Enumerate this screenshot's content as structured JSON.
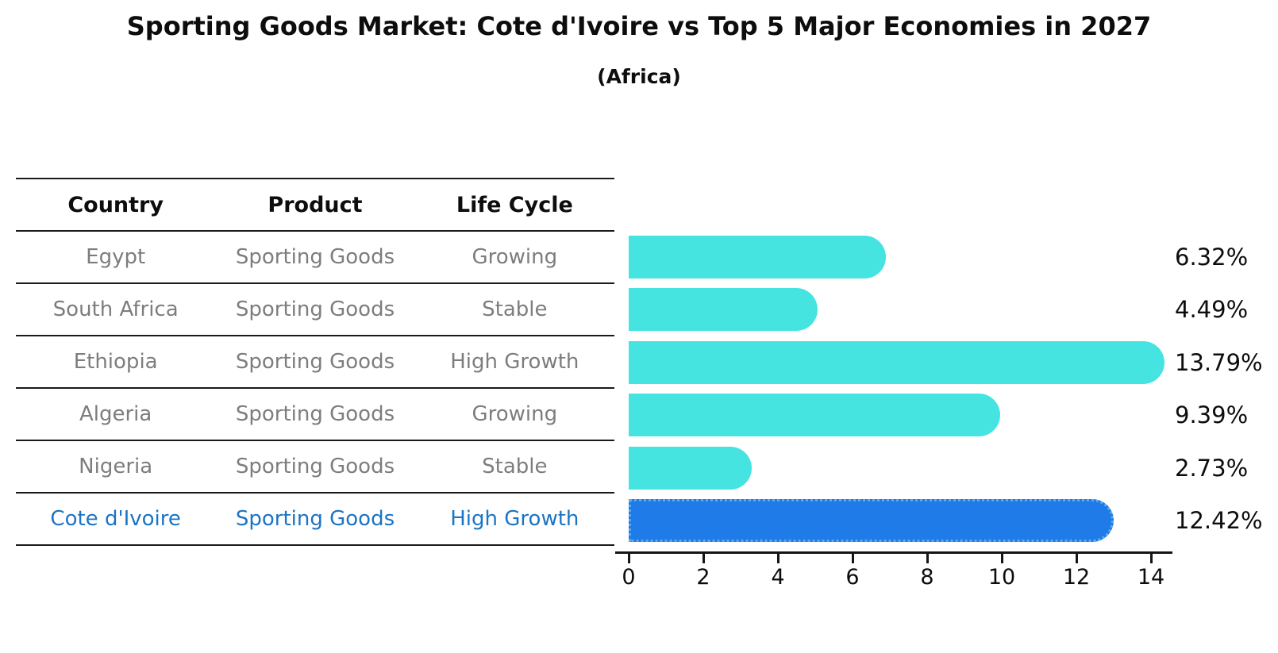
{
  "title": "Sporting Goods Market: Cote d'Ivoire vs Top 5 Major Economies in 2027",
  "subtitle": "(Africa)",
  "table": {
    "headers": [
      "Country",
      "Product",
      "Life Cycle"
    ],
    "rows": [
      {
        "country": "Egypt",
        "product": "Sporting Goods",
        "life_cycle": "Growing",
        "highlight": false
      },
      {
        "country": "South Africa",
        "product": "Sporting Goods",
        "life_cycle": "Stable",
        "highlight": false
      },
      {
        "country": "Ethiopia",
        "product": "Sporting Goods",
        "life_cycle": "High Growth",
        "highlight": false
      },
      {
        "country": "Algeria",
        "product": "Sporting Goods",
        "life_cycle": "Growing",
        "highlight": false
      },
      {
        "country": "Nigeria",
        "product": "Sporting Goods",
        "life_cycle": "Stable",
        "highlight": false
      },
      {
        "country": "Cote d'Ivoire",
        "product": "Sporting Goods",
        "life_cycle": "High Growth",
        "highlight": true
      }
    ]
  },
  "chart_data": {
    "type": "bar",
    "orientation": "horizontal",
    "title": "Sporting Goods Market: Cote d'Ivoire vs Top 5 Major Economies in 2027 (Africa)",
    "categories": [
      "Egypt",
      "South Africa",
      "Ethiopia",
      "Algeria",
      "Nigeria",
      "Cote d'Ivoire"
    ],
    "values": [
      6.32,
      4.49,
      13.79,
      9.39,
      2.73,
      12.42
    ],
    "value_labels": [
      "6.32%",
      "4.49%",
      "13.79%",
      "9.39%",
      "2.73%",
      "12.42%"
    ],
    "x_ticks": [
      "0",
      "2",
      "4",
      "6",
      "8",
      "10",
      "12",
      "14"
    ],
    "xlim": [
      0,
      14.5
    ],
    "grid": false,
    "legend": false,
    "highlight_index": 5,
    "bar_color": "#45E4E0",
    "highlight_bar_color": "#1E7BE8",
    "highlight_border_color": "#5FA8EE",
    "text_color": "#0d0d0d",
    "muted_text_color": "#7d7d7d",
    "highlight_text_color": "#1b74c5"
  }
}
